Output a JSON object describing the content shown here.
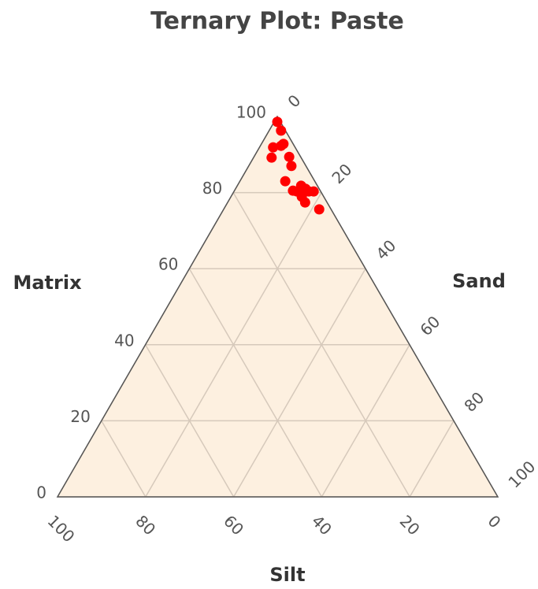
{
  "chart_data": {
    "type": "ternary",
    "title": "Ternary Plot: Paste",
    "a_axis": {
      "label": "Matrix",
      "ticks": [
        0,
        20,
        40,
        60,
        80,
        100
      ]
    },
    "b_axis": {
      "label": "Sand",
      "ticks": [
        0,
        20,
        40,
        60,
        80,
        100
      ]
    },
    "c_axis": {
      "label": "Silt",
      "ticks": [
        0,
        20,
        40,
        60,
        80,
        100
      ]
    },
    "sum": 100,
    "grid": true,
    "color": "#ff0000",
    "background": "#fdf0e0",
    "points": {
      "matrix": [
        98.6,
        96.3,
        91.9,
        92.3,
        92.8,
        89.2,
        89.4,
        87.0,
        83.0,
        80.5,
        81.8,
        81.0,
        80.3,
        80.3,
        78.9,
        77.4,
        75.6,
        80.3
      ],
      "sand": [
        0.7,
        2.7,
        3.1,
        4.7,
        5.0,
        4.1,
        8.0,
        9.7,
        10.3,
        13.3,
        14.5,
        15.9,
        17.0,
        18.1,
        16.1,
        17.6,
        21.7,
        14.3
      ],
      "silt": [
        0.7,
        1.0,
        5.0,
        3.0,
        2.2,
        6.7,
        2.6,
        3.3,
        6.7,
        6.2,
        3.7,
        3.1,
        2.7,
        1.6,
        5.0,
        5.0,
        2.7,
        5.4
      ]
    }
  }
}
